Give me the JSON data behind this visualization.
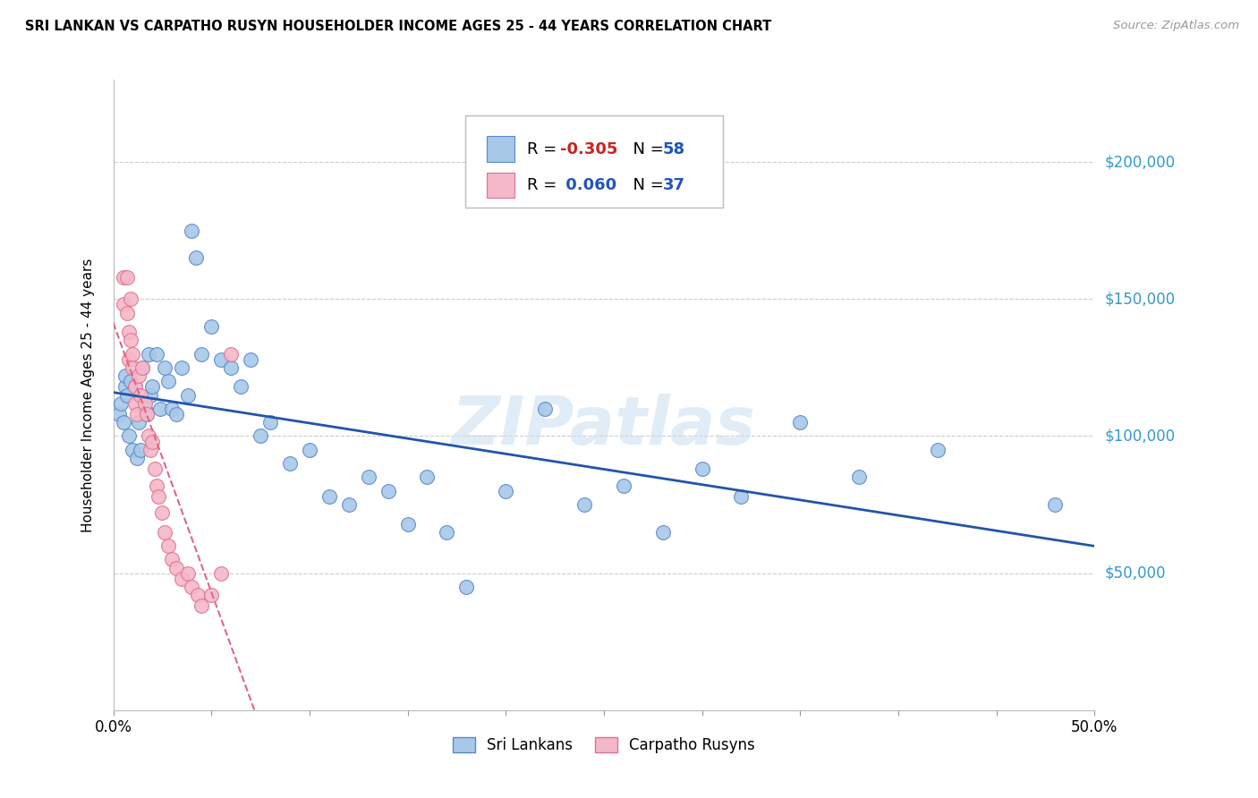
{
  "title": "SRI LANKAN VS CARPATHO RUSYN HOUSEHOLDER INCOME AGES 25 - 44 YEARS CORRELATION CHART",
  "source": "Source: ZipAtlas.com",
  "ylabel": "Householder Income Ages 25 - 44 years",
  "xlim": [
    0.0,
    0.5
  ],
  "ylim": [
    0,
    230000
  ],
  "yticks": [
    0,
    50000,
    100000,
    150000,
    200000
  ],
  "ytick_labels": [
    "",
    "$50,000",
    "$100,000",
    "$150,000",
    "$200,000"
  ],
  "xticks": [
    0.0,
    0.05,
    0.1,
    0.15,
    0.2,
    0.25,
    0.3,
    0.35,
    0.4,
    0.45,
    0.5
  ],
  "watermark": "ZIPatlas",
  "blue_color": "#a8c8e8",
  "blue_edge": "#5588cc",
  "pink_color": "#f4b8c8",
  "pink_edge": "#e07090",
  "blue_line_color": "#2255aa",
  "pink_line_color": "#dd6688",
  "legend_label1": "Sri Lankans",
  "legend_label2": "Carpatho Rusyns",
  "sri_lankan_x": [
    0.006,
    0.003,
    0.004,
    0.005,
    0.006,
    0.007,
    0.008,
    0.009,
    0.01,
    0.011,
    0.012,
    0.013,
    0.014,
    0.015,
    0.016,
    0.017,
    0.018,
    0.019,
    0.02,
    0.022,
    0.024,
    0.026,
    0.028,
    0.03,
    0.032,
    0.035,
    0.038,
    0.04,
    0.042,
    0.045,
    0.05,
    0.055,
    0.06,
    0.065,
    0.07,
    0.075,
    0.08,
    0.09,
    0.1,
    0.11,
    0.12,
    0.13,
    0.14,
    0.15,
    0.16,
    0.17,
    0.18,
    0.2,
    0.22,
    0.24,
    0.26,
    0.28,
    0.3,
    0.32,
    0.35,
    0.38,
    0.42,
    0.48
  ],
  "sri_lankan_y": [
    118000,
    108000,
    112000,
    105000,
    122000,
    115000,
    100000,
    120000,
    95000,
    118000,
    92000,
    105000,
    95000,
    125000,
    110000,
    108000,
    130000,
    115000,
    118000,
    130000,
    110000,
    125000,
    120000,
    110000,
    108000,
    125000,
    115000,
    175000,
    165000,
    130000,
    140000,
    128000,
    125000,
    118000,
    128000,
    100000,
    105000,
    90000,
    95000,
    78000,
    75000,
    85000,
    80000,
    68000,
    85000,
    65000,
    45000,
    80000,
    110000,
    75000,
    82000,
    65000,
    88000,
    78000,
    105000,
    85000,
    95000,
    75000
  ],
  "carpatho_x": [
    0.005,
    0.005,
    0.007,
    0.007,
    0.008,
    0.008,
    0.009,
    0.009,
    0.01,
    0.01,
    0.011,
    0.011,
    0.012,
    0.013,
    0.014,
    0.015,
    0.016,
    0.017,
    0.018,
    0.019,
    0.02,
    0.021,
    0.022,
    0.023,
    0.025,
    0.026,
    0.028,
    0.03,
    0.032,
    0.035,
    0.038,
    0.04,
    0.043,
    0.045,
    0.05,
    0.055,
    0.06
  ],
  "carpatho_y": [
    158000,
    148000,
    158000,
    145000,
    138000,
    128000,
    150000,
    135000,
    130000,
    125000,
    118000,
    112000,
    108000,
    122000,
    115000,
    125000,
    112000,
    108000,
    100000,
    95000,
    98000,
    88000,
    82000,
    78000,
    72000,
    65000,
    60000,
    55000,
    52000,
    48000,
    50000,
    45000,
    42000,
    38000,
    42000,
    50000,
    130000
  ]
}
